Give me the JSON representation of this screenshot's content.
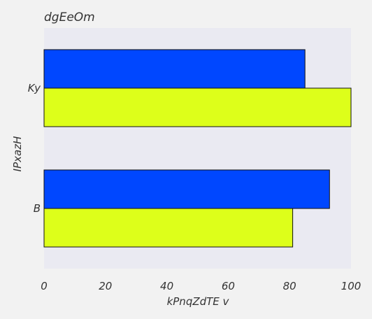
{
  "chart_data": {
    "type": "bar",
    "orientation": "horizontal",
    "title": "dgEeOm",
    "xlabel": "kPnqZdTE v",
    "ylabel": "IPxazH",
    "categories": [
      "Ky",
      "B"
    ],
    "series": [
      {
        "values": [
          85,
          93
        ],
        "color": "#0047ff"
      },
      {
        "values": [
          100,
          81
        ],
        "color": "#ddff1a"
      }
    ],
    "xlim": [
      0,
      100
    ],
    "xticks": [
      0,
      20,
      40,
      60,
      80,
      100
    ],
    "grid": false,
    "legend": "none",
    "background": "#eaeaf2"
  }
}
